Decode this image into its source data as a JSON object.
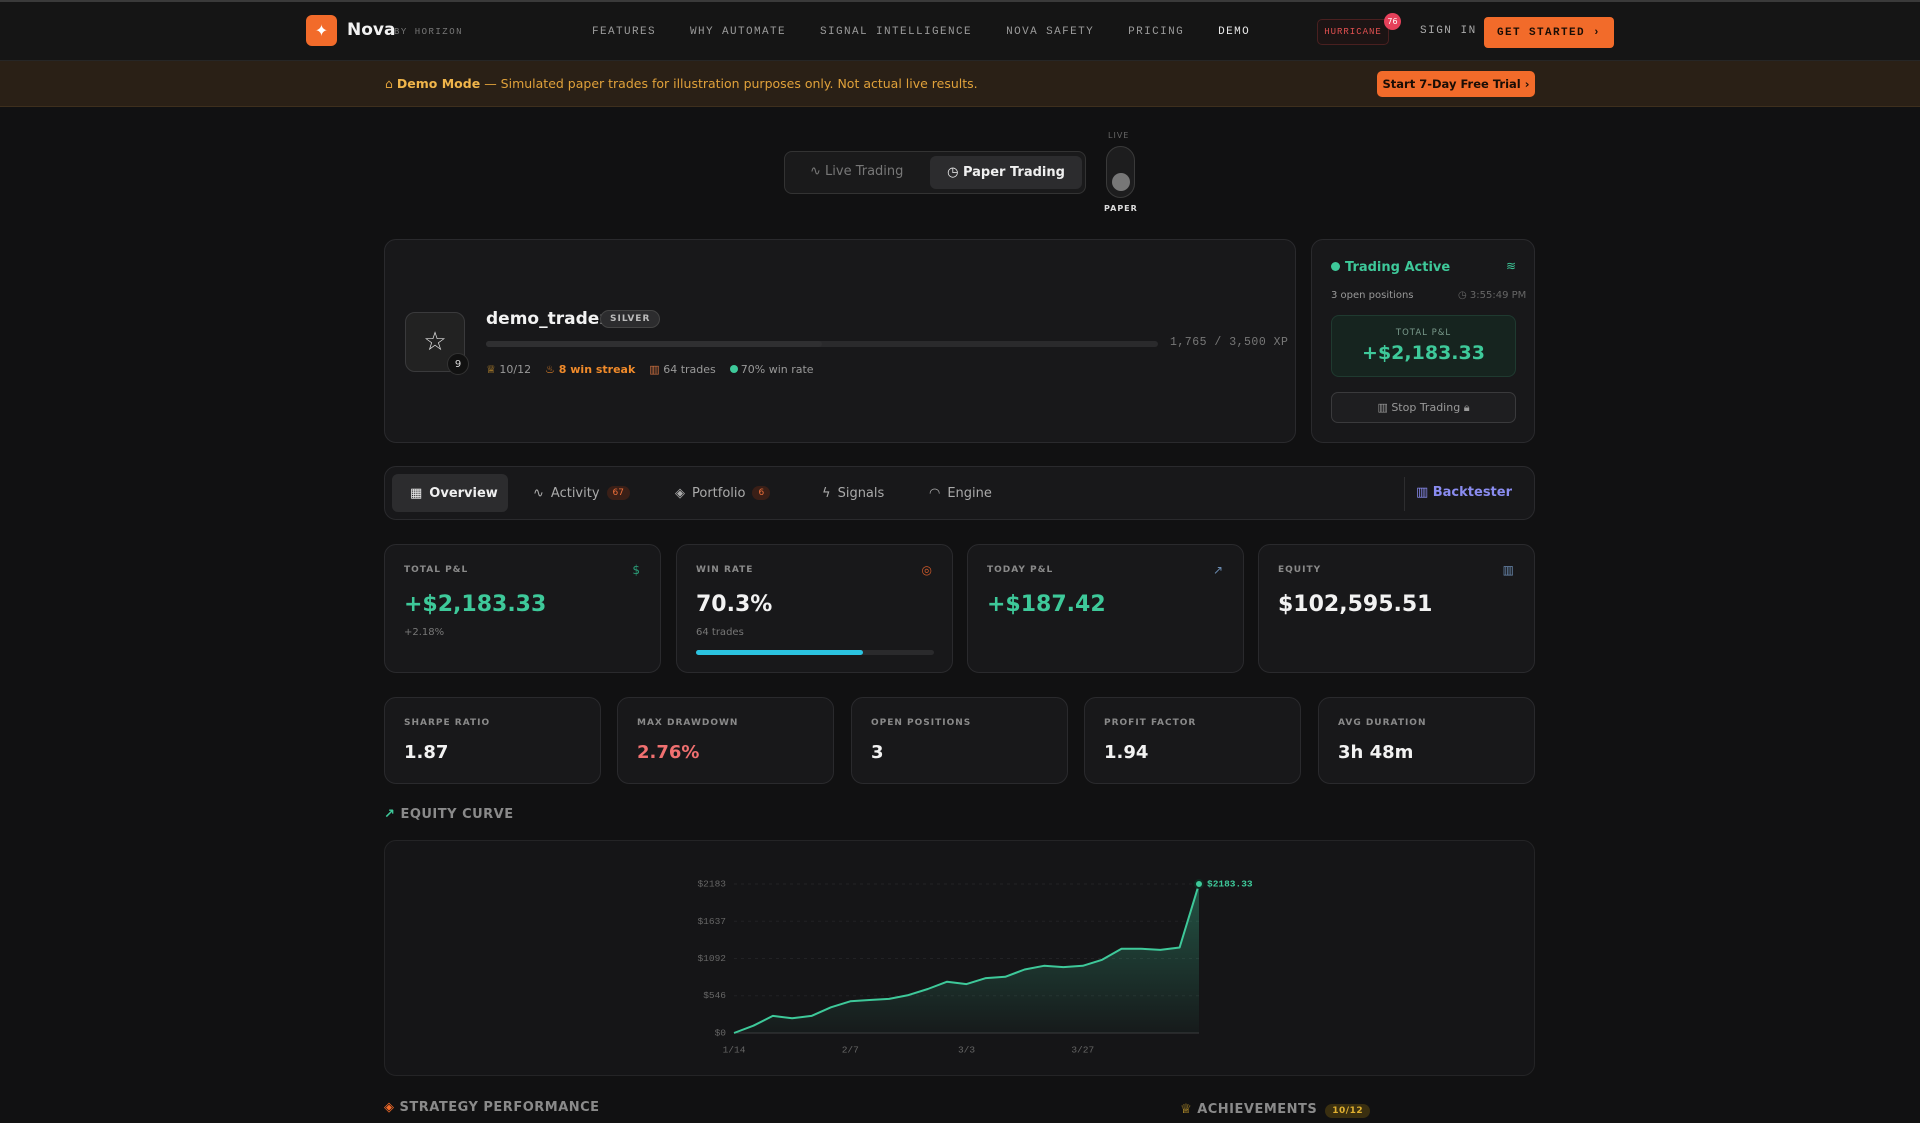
{
  "nav": {
    "brand": "Nova",
    "brand_sub": "BY HORIZON",
    "links": [
      "FEATURES",
      "WHY AUTOMATE",
      "SIGNAL INTELLIGENCE",
      "NOVA SAFETY",
      "PRICING",
      "DEMO"
    ],
    "hurricane": "HURRICANE",
    "hurricane_badge": "76",
    "sign_in": "SIGN IN",
    "cta": "GET STARTED"
  },
  "banner": {
    "title": "Demo Mode",
    "text": "— Simulated paper trades for illustration purposes only. Not actual live results.",
    "cta": "Start 7-Day Free Trial"
  },
  "mode": {
    "live": "Live Trading",
    "paper": "Paper Trading",
    "switch_top": "LIVE",
    "switch_bottom": "PAPER"
  },
  "profile": {
    "level": "9",
    "username": "demo_trader",
    "tier": "SILVER",
    "xp": "1,765 / 3,500 XP",
    "achievements": "10/12",
    "streak": "8 win streak",
    "trades": "64 trades",
    "win_rate": "70% win rate"
  },
  "status": {
    "title": "Trading Active",
    "positions": "3 open positions",
    "time": "3:55:49 PM",
    "pnl_label": "TOTAL P&L",
    "pnl": "+$2,183.33",
    "stop": "Stop Trading"
  },
  "tabs": [
    {
      "label": "Overview"
    },
    {
      "label": "Activity",
      "badge": "67"
    },
    {
      "label": "Portfolio",
      "badge": "6"
    },
    {
      "label": "Signals"
    },
    {
      "label": "Engine"
    }
  ],
  "backtester": "Backtester",
  "stats": [
    {
      "label": "TOTAL P&L",
      "value": "+$2,183.33",
      "sub": "+2.18%"
    },
    {
      "label": "WIN RATE",
      "value": "70.3%",
      "sub": "64 trades"
    },
    {
      "label": "TODAY P&L",
      "value": "+$187.42"
    },
    {
      "label": "EQUITY",
      "value": "$102,595.51"
    }
  ],
  "metrics": [
    {
      "label": "SHARPE RATIO",
      "value": "1.87"
    },
    {
      "label": "MAX DRAWDOWN",
      "value": "2.76%"
    },
    {
      "label": "OPEN POSITIONS",
      "value": "3"
    },
    {
      "label": "PROFIT FACTOR",
      "value": "1.94"
    },
    {
      "label": "AVG DURATION",
      "value": "3h 48m"
    }
  ],
  "sections": {
    "equity": "EQUITY CURVE",
    "strategy": "STRATEGY PERFORMANCE",
    "achievements": "ACHIEVEMENTS",
    "achievements_count": "10/12"
  },
  "chart_data": {
    "type": "line",
    "color": "#3ec99a",
    "grid": true,
    "categories": [
      "1/14",
      null,
      null,
      null,
      null,
      null,
      "2/7",
      null,
      null,
      null,
      null,
      null,
      "3/3",
      null,
      null,
      null,
      null,
      null,
      "3/27",
      null,
      null,
      null,
      null,
      null,
      null
    ],
    "values": [
      0,
      107,
      250,
      215,
      250,
      376,
      465,
      483,
      500,
      555,
      644,
      752,
      716,
      805,
      823,
      930,
      984,
      966,
      984,
      1073,
      1235,
      1235,
      1217,
      1253,
      2183.33
    ],
    "value_labels": [
      null,
      null,
      null,
      null,
      null,
      null,
      null,
      null,
      null,
      null,
      null,
      null,
      null,
      null,
      null,
      null,
      null,
      null,
      null,
      null,
      null,
      null,
      null,
      null,
      "$2183.33"
    ],
    "ylim": [
      0,
      2183
    ],
    "yticks": [
      {
        "value": 0,
        "label": "$0"
      },
      {
        "value": 546,
        "label": "$546"
      },
      {
        "value": 1092,
        "label": "$1092"
      },
      {
        "value": 1637,
        "label": "$1637"
      },
      {
        "value": 2183,
        "label": "$2183"
      }
    ]
  }
}
